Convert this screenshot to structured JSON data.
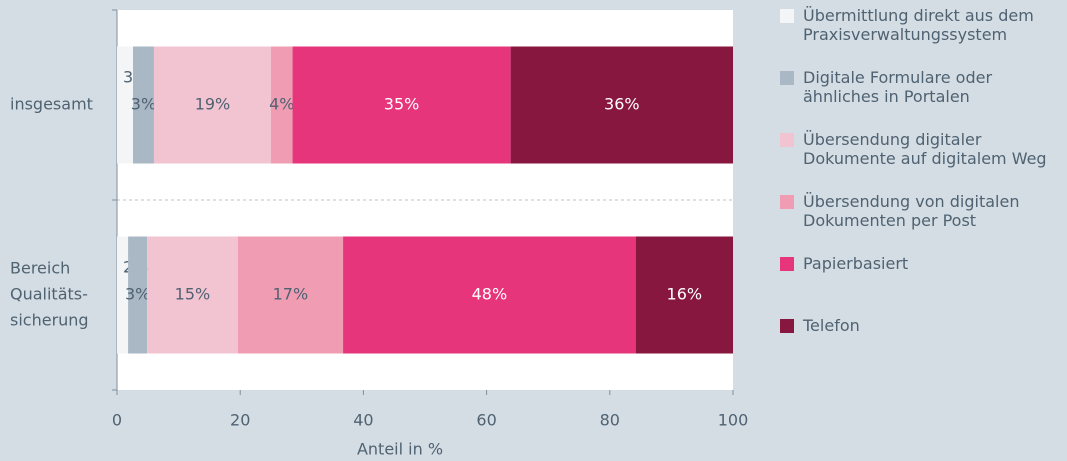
{
  "chart_data": {
    "type": "stacked-barh",
    "categories": [
      [
        "insgesamt"
      ],
      [
        "Bereich",
        "Qualitäts-",
        "sicherung"
      ]
    ],
    "series": [
      {
        "name": "Übermittlung direkt aus dem Praxisverwaltungssystem",
        "color": "#f3f5f7",
        "values": [
          2.6,
          1.8
        ],
        "value_labels": [
          "3%",
          "2%"
        ]
      },
      {
        "name": "Digitale Formulare oder ähnliches in Portalen",
        "color": "#a9b8c4",
        "values": [
          3.4,
          3.1
        ],
        "value_labels": [
          "3%",
          "3%"
        ]
      },
      {
        "name": "Übersendung digitaler Dokumente auf digitalem Weg",
        "color": "#f2c4d2",
        "values": [
          19.0,
          14.7
        ],
        "value_labels": [
          "19%",
          "15%"
        ]
      },
      {
        "name": "Übersendung von digitalen Dokumenten per Post",
        "color": "#f09db4",
        "values": [
          3.5,
          17.1
        ],
        "value_labels": [
          "4%",
          "17%"
        ]
      },
      {
        "name": "Papierbasiert",
        "color": "#e6357a",
        "values": [
          35.4,
          47.5
        ],
        "value_labels": [
          "35%",
          "48%"
        ]
      },
      {
        "name": "Telefon",
        "color": "#88173f",
        "values": [
          36.1,
          15.8
        ],
        "value_labels": [
          "36%",
          "16%"
        ]
      }
    ],
    "xlabel": "Anteil in %",
    "xlim": [
      0,
      100
    ],
    "xticks": [
      0,
      20,
      40,
      60,
      80,
      100
    ]
  }
}
